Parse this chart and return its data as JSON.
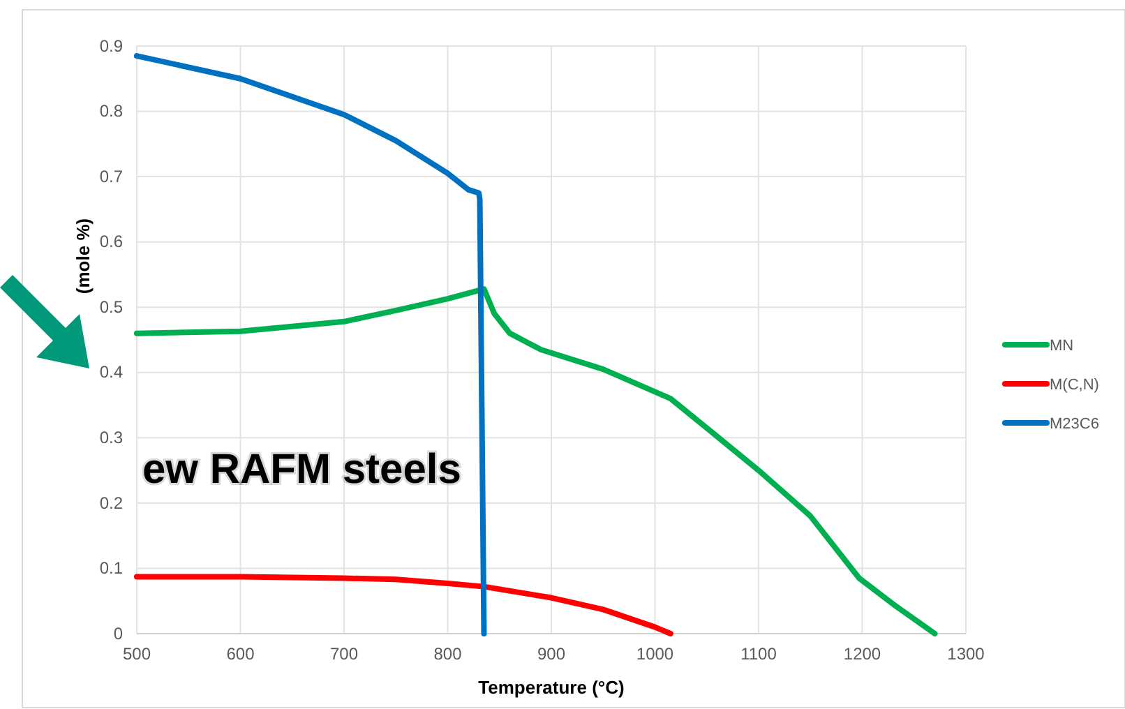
{
  "chart_data": {
    "type": "line",
    "xlabel": "Temperature (°C)",
    "ylabel": "(mole %)",
    "xlim": [
      500,
      1300
    ],
    "xticks": [
      500,
      600,
      700,
      800,
      900,
      1000,
      1100,
      1200,
      1300
    ],
    "ylim": [
      0,
      0.9
    ],
    "yticks": [
      0,
      0.1,
      0.2,
      0.3,
      0.4,
      0.5,
      0.6,
      0.7,
      0.8,
      0.9
    ],
    "grid": true,
    "legend": "right",
    "annotations": [
      "ew RAFM steels"
    ],
    "series": [
      {
        "name": "MN",
        "color": "#00b050",
        "x": [
          500,
          600,
          700,
          750,
          800,
          835,
          845,
          860,
          890,
          950,
          1015,
          1050,
          1100,
          1150,
          1197,
          1230,
          1270
        ],
        "values": [
          0.46,
          0.463,
          0.478,
          0.495,
          0.513,
          0.528,
          0.49,
          0.46,
          0.435,
          0.405,
          0.36,
          0.315,
          0.25,
          0.18,
          0.085,
          0.045,
          0
        ]
      },
      {
        "name": "M(C,N)",
        "color": "#ff0000",
        "x": [
          500,
          600,
          700,
          750,
          800,
          835,
          900,
          950,
          1000,
          1015
        ],
        "values": [
          0.087,
          0.087,
          0.085,
          0.083,
          0.077,
          0.072,
          0.055,
          0.037,
          0.01,
          0
        ]
      },
      {
        "name": "M23C6",
        "color": "#0070c0",
        "x": [
          500,
          600,
          700,
          750,
          800,
          820,
          830,
          831,
          835
        ],
        "values": [
          0.885,
          0.85,
          0.795,
          0.755,
          0.705,
          0.68,
          0.675,
          0.665,
          0
        ]
      }
    ]
  }
}
